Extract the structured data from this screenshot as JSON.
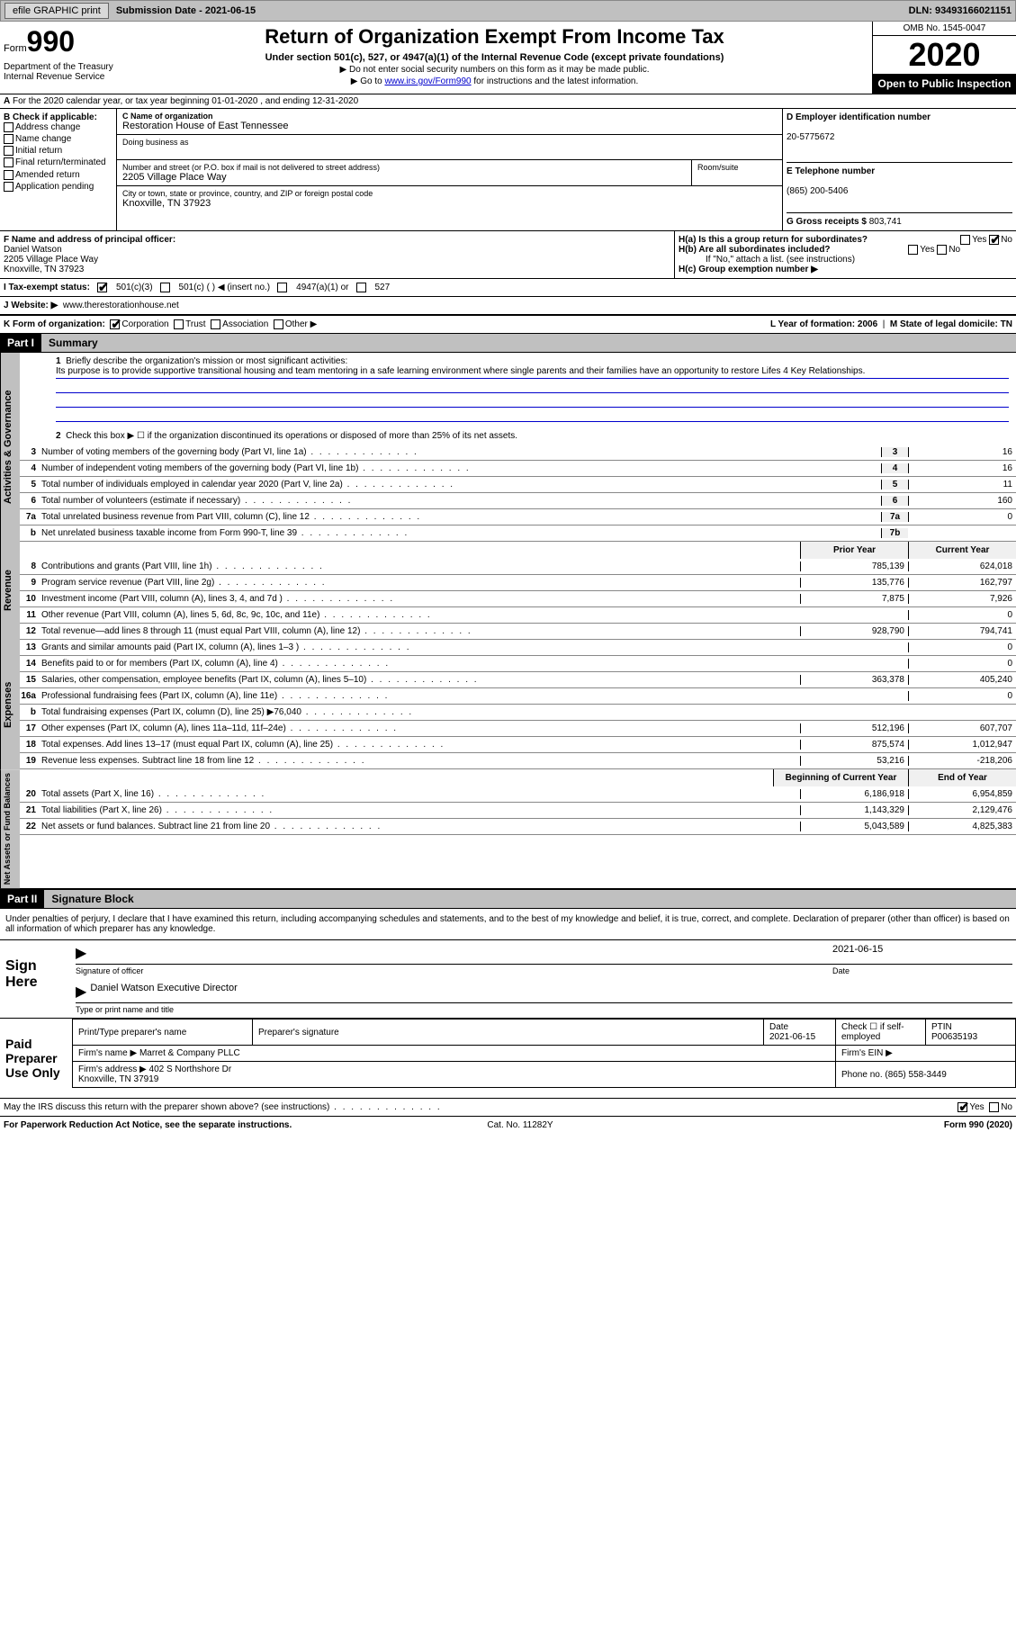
{
  "topbar": {
    "efile": "efile GRAPHIC print",
    "submission": "Submission Date - 2021-06-15",
    "dln": "DLN: 93493166021151"
  },
  "header": {
    "form_word": "Form",
    "form_num": "990",
    "dept": "Department of the Treasury\nInternal Revenue Service",
    "title": "Return of Organization Exempt From Income Tax",
    "subtitle": "Under section 501(c), 527, or 4947(a)(1) of the Internal Revenue Code (except private foundations)",
    "instr1": "▶ Do not enter social security numbers on this form as it may be made public.",
    "instr2_pre": "▶ Go to ",
    "instr2_link": "www.irs.gov/Form990",
    "instr2_post": " for instructions and the latest information.",
    "omb": "OMB No. 1545-0047",
    "year": "2020",
    "inspect": "Open to Public Inspection"
  },
  "row_a": "For the 2020 calendar year, or tax year beginning 01-01-2020    , and ending 12-31-2020",
  "box_b": {
    "title": "B Check if applicable:",
    "items": [
      "Address change",
      "Name change",
      "Initial return",
      "Final return/terminated",
      "Amended return",
      "Application pending"
    ]
  },
  "box_c": {
    "name_lbl": "C Name of organization",
    "name": "Restoration House of East Tennessee",
    "dba_lbl": "Doing business as",
    "dba": "",
    "addr_lbl": "Number and street (or P.O. box if mail is not delivered to street address)",
    "addr": "2205 Village Place Way",
    "room_lbl": "Room/suite",
    "city_lbl": "City or town, state or province, country, and ZIP or foreign postal code",
    "city": "Knoxville, TN  37923"
  },
  "box_d": {
    "lbl": "D Employer identification number",
    "val": "20-5775672"
  },
  "box_e": {
    "lbl": "E Telephone number",
    "val": "(865) 200-5406"
  },
  "box_g": {
    "lbl": "G Gross receipts $",
    "val": "803,741"
  },
  "box_f": {
    "lbl": "F  Name and address of principal officer:",
    "name": "Daniel Watson",
    "addr1": "2205 Village Place Way",
    "addr2": "Knoxville, TN  37923"
  },
  "box_h": {
    "a": "H(a)  Is this a group return for subordinates?",
    "b": "H(b)  Are all subordinates included?",
    "b2": "If \"No,\" attach a list. (see instructions)",
    "c": "H(c)  Group exemption number ▶"
  },
  "row_i": {
    "lbl": "I    Tax-exempt status:",
    "opts": [
      "501(c)(3)",
      "501(c) (  ) ◀ (insert no.)",
      "4947(a)(1) or",
      "527"
    ]
  },
  "row_j": {
    "lbl": "J   Website: ▶",
    "val": "www.therestorationhouse.net"
  },
  "row_k": {
    "lbl": "K Form of organization:",
    "opts": [
      "Corporation",
      "Trust",
      "Association",
      "Other ▶"
    ],
    "l": "L Year of formation: 2006",
    "m": "M State of legal domicile: TN"
  },
  "parts": {
    "p1": "Part I",
    "p1t": "Summary",
    "p2": "Part II",
    "p2t": "Signature Block"
  },
  "summary": {
    "line1_lbl": "Briefly describe the organization's mission or most significant activities:",
    "line1": "Its purpose is to provide supportive transitional housing and team mentoring in a safe learning environment where single parents and their families have an opportunity to restore Lifes 4 Key Relationships.",
    "line2": "Check this box ▶ ☐  if the organization discontinued its operations or disposed of more than 25% of its net assets.",
    "hdr_prior": "Prior Year",
    "hdr_current": "Current Year",
    "hdr_begin": "Beginning of Current Year",
    "hdr_end": "End of Year"
  },
  "lines_gov": [
    {
      "n": "3",
      "d": "Number of voting members of the governing body (Part VI, line 1a)",
      "c": "3",
      "v": "16"
    },
    {
      "n": "4",
      "d": "Number of independent voting members of the governing body (Part VI, line 1b)",
      "c": "4",
      "v": "16"
    },
    {
      "n": "5",
      "d": "Total number of individuals employed in calendar year 2020 (Part V, line 2a)",
      "c": "5",
      "v": "11"
    },
    {
      "n": "6",
      "d": "Total number of volunteers (estimate if necessary)",
      "c": "6",
      "v": "160"
    },
    {
      "n": "7a",
      "d": "Total unrelated business revenue from Part VIII, column (C), line 12",
      "c": "7a",
      "v": "0"
    },
    {
      "n": "b",
      "d": "Net unrelated business taxable income from Form 990-T, line 39",
      "c": "7b",
      "v": ""
    }
  ],
  "lines_rev": [
    {
      "n": "8",
      "d": "Contributions and grants (Part VIII, line 1h)",
      "p": "785,139",
      "v": "624,018"
    },
    {
      "n": "9",
      "d": "Program service revenue (Part VIII, line 2g)",
      "p": "135,776",
      "v": "162,797"
    },
    {
      "n": "10",
      "d": "Investment income (Part VIII, column (A), lines 3, 4, and 7d )",
      "p": "7,875",
      "v": "7,926"
    },
    {
      "n": "11",
      "d": "Other revenue (Part VIII, column (A), lines 5, 6d, 8c, 9c, 10c, and 11e)",
      "p": "",
      "v": "0"
    },
    {
      "n": "12",
      "d": "Total revenue—add lines 8 through 11 (must equal Part VIII, column (A), line 12)",
      "p": "928,790",
      "v": "794,741"
    }
  ],
  "lines_exp": [
    {
      "n": "13",
      "d": "Grants and similar amounts paid (Part IX, column (A), lines 1–3 )",
      "p": "",
      "v": "0"
    },
    {
      "n": "14",
      "d": "Benefits paid to or for members (Part IX, column (A), line 4)",
      "p": "",
      "v": "0"
    },
    {
      "n": "15",
      "d": "Salaries, other compensation, employee benefits (Part IX, column (A), lines 5–10)",
      "p": "363,378",
      "v": "405,240"
    },
    {
      "n": "16a",
      "d": "Professional fundraising fees (Part IX, column (A), line 11e)",
      "p": "",
      "v": "0"
    },
    {
      "n": "b",
      "d": "Total fundraising expenses (Part IX, column (D), line 25) ▶76,040",
      "p": "shaded",
      "v": "shaded"
    },
    {
      "n": "17",
      "d": "Other expenses (Part IX, column (A), lines 11a–11d, 11f–24e)",
      "p": "512,196",
      "v": "607,707"
    },
    {
      "n": "18",
      "d": "Total expenses. Add lines 13–17 (must equal Part IX, column (A), line 25)",
      "p": "875,574",
      "v": "1,012,947"
    },
    {
      "n": "19",
      "d": "Revenue less expenses. Subtract line 18 from line 12",
      "p": "53,216",
      "v": "-218,206"
    }
  ],
  "lines_net": [
    {
      "n": "20",
      "d": "Total assets (Part X, line 16)",
      "p": "6,186,918",
      "v": "6,954,859"
    },
    {
      "n": "21",
      "d": "Total liabilities (Part X, line 26)",
      "p": "1,143,329",
      "v": "2,129,476"
    },
    {
      "n": "22",
      "d": "Net assets or fund balances. Subtract line 21 from line 20",
      "p": "5,043,589",
      "v": "4,825,383"
    }
  ],
  "side": {
    "gov": "Activities & Governance",
    "rev": "Revenue",
    "exp": "Expenses",
    "net": "Net Assets or Fund Balances"
  },
  "sig": {
    "decl": "Under penalties of perjury, I declare that I have examined this return, including accompanying schedules and statements, and to the best of my knowledge and belief, it is true, correct, and complete. Declaration of preparer (other than officer) is based on all information of which preparer has any knowledge.",
    "sign_here": "Sign Here",
    "sig_officer": "Signature of officer",
    "date": "Date",
    "date_val": "2021-06-15",
    "name_val": "Daniel Watson  Executive Director",
    "name_lbl": "Type or print name and title",
    "paid": "Paid Preparer Use Only",
    "pt_name": "Print/Type preparer's name",
    "pt_sig": "Preparer's signature",
    "pt_date": "Date",
    "pt_date_val": "2021-06-15",
    "pt_check": "Check ☐ if self-employed",
    "ptin_lbl": "PTIN",
    "ptin": "P00635193",
    "firm_name_lbl": "Firm's name    ▶",
    "firm_name": "Marret & Company PLLC",
    "firm_ein": "Firm's EIN ▶",
    "firm_addr_lbl": "Firm's address ▶",
    "firm_addr": "402 S Northshore Dr\nKnoxville, TN  37919",
    "phone_lbl": "Phone no.",
    "phone": "(865) 558-3449"
  },
  "footer": {
    "discuss": "May the IRS discuss this return with the preparer shown above? (see instructions)",
    "yes": "Yes",
    "no": "No",
    "pra": "For Paperwork Reduction Act Notice, see the separate instructions.",
    "cat": "Cat. No. 11282Y",
    "form": "Form 990 (2020)"
  }
}
